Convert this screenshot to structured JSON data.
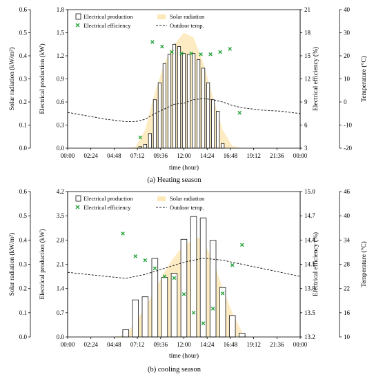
{
  "chart_data": [
    {
      "type": "bar",
      "caption": "(a) Heating season",
      "xlabel": "time (hour)",
      "x_ticks": [
        "00:00",
        "02:24",
        "04:48",
        "07:12",
        "09:36",
        "12:00",
        "14:24",
        "16:48",
        "19:12",
        "21:36",
        "00:00"
      ],
      "x_range_hours": [
        0,
        24
      ],
      "grid": false,
      "legend_position": "top-left",
      "axes": {
        "solar": {
          "label": "Solar radiation (kW/m²)",
          "range": [
            0,
            0.6
          ],
          "ticks": [
            "0.0",
            "0.1",
            "0.2",
            "0.3",
            "0.4",
            "0.5",
            "0.6"
          ]
        },
        "production": {
          "label": "Electrical production (kW)",
          "range": [
            0,
            1.8
          ],
          "ticks": [
            "0.0",
            "0.3",
            "0.6",
            "0.9",
            "1.2",
            "1.5",
            "1.8"
          ]
        },
        "efficiency": {
          "label": "Electrical efficiency (%)",
          "range": [
            3,
            21
          ],
          "ticks": [
            "3",
            "6",
            "9",
            "12",
            "15",
            "18",
            "21"
          ]
        },
        "temperature": {
          "label": "Temperature (°C)",
          "range": [
            -20,
            40
          ],
          "ticks": [
            "-20",
            "-10",
            "0",
            "10",
            "20",
            "30",
            "40"
          ]
        }
      },
      "legend": [
        "Electrical production",
        "Solar radiation",
        "Electrical efficiency",
        "Outdoor temp."
      ],
      "series": [
        {
          "name": "Electrical production",
          "axis": "production",
          "x": [
            7.5,
            8,
            8.5,
            9,
            9.5,
            10,
            10.5,
            11,
            11.5,
            12,
            12.5,
            13,
            13.5,
            14,
            14.5,
            15,
            15.5,
            16,
            16.5
          ],
          "values": [
            0.02,
            0.05,
            0.19,
            0.63,
            0.85,
            1.1,
            1.22,
            1.35,
            1.32,
            1.23,
            1.22,
            1.23,
            1.15,
            1.04,
            0.85,
            0.63,
            0.48,
            0.06,
            0.0
          ]
        },
        {
          "name": "Solar radiation",
          "axis": "solar",
          "x": [
            6,
            7,
            8,
            9,
            10,
            11,
            12,
            13,
            14,
            15,
            16,
            17,
            18
          ],
          "values": [
            0,
            0.005,
            0.08,
            0.24,
            0.37,
            0.45,
            0.5,
            0.48,
            0.37,
            0.22,
            0.08,
            0.01,
            0
          ]
        },
        {
          "name": "Electrical efficiency",
          "axis": "efficiency",
          "x": [
            7.5,
            8.75,
            9.75,
            10.75,
            11.75,
            12.75,
            13.75,
            14.75,
            15.75,
            16.75,
            17.75
          ],
          "values": [
            4.4,
            16.8,
            16.2,
            15.5,
            15.3,
            15.3,
            15.2,
            15.2,
            15.5,
            15.9,
            7.6
          ]
        },
        {
          "name": "Outdoor temp.",
          "axis": "temperature",
          "x": [
            0,
            2,
            4,
            6,
            7,
            8,
            9,
            10,
            11,
            12,
            13,
            14,
            15,
            16,
            17,
            18,
            20,
            22,
            24
          ],
          "values": [
            -4.5,
            -6,
            -7.5,
            -8.5,
            -8.5,
            -7.5,
            -5,
            -3,
            -1,
            -0.5,
            1,
            1.5,
            1,
            0,
            -1.5,
            -2.5,
            -3.5,
            -4,
            -5
          ]
        }
      ]
    },
    {
      "type": "bar",
      "caption": "(b) cooling season",
      "xlabel": "time (hour)",
      "x_ticks": [
        "00:00",
        "02:24",
        "04:48",
        "07:12",
        "09:36",
        "12:00",
        "14:24",
        "16:48",
        "19:12",
        "21:36",
        "00:00"
      ],
      "x_range_hours": [
        0,
        24
      ],
      "grid": false,
      "legend_position": "top-left",
      "axes": {
        "solar": {
          "label": "Solar radiation (kW/m²)",
          "range": [
            0,
            0.6
          ],
          "ticks": [
            "0.0",
            "0.1",
            "0.2",
            "0.3",
            "0.4",
            "0.5",
            "0.6"
          ]
        },
        "production": {
          "label": "Electrical production (kW)",
          "range": [
            0,
            4.2
          ],
          "ticks": [
            "0.0",
            "0.7",
            "1.4",
            "2.1",
            "2.8",
            "3.5",
            "4.2"
          ]
        },
        "efficiency": {
          "label": "Electrical efficiency (%)",
          "range": [
            13.2,
            15.0
          ],
          "ticks": [
            "13.2",
            "13.5",
            "13.8",
            "14.1",
            "14.4",
            "14.7",
            "15.0"
          ]
        },
        "temperature": {
          "label": "Temperature (°C)",
          "range": [
            10,
            46
          ],
          "ticks": [
            "10",
            "16",
            "22",
            "28",
            "34",
            "40",
            "46"
          ]
        }
      },
      "legend": [
        "Electrical production",
        "Solar radiation",
        "Electrical efficiency",
        "Outdoor temp."
      ],
      "series": [
        {
          "name": "Electrical production",
          "axis": "production",
          "x": [
            6,
            7,
            8,
            9,
            10,
            11,
            12,
            13,
            14,
            15,
            16,
            17,
            18
          ],
          "values": [
            0.21,
            1.07,
            1.16,
            2.27,
            1.72,
            1.84,
            2.82,
            3.48,
            3.44,
            2.79,
            1.43,
            0.62,
            0.11
          ]
        },
        {
          "name": "Solar radiation",
          "axis": "solar",
          "x": [
            4.5,
            5.5,
            6,
            7,
            8,
            9,
            10,
            11,
            12,
            13,
            13.5,
            14,
            15,
            16,
            17,
            18,
            18.5
          ],
          "values": [
            0,
            0.005,
            0.01,
            0.06,
            0.12,
            0.19,
            0.27,
            0.33,
            0.38,
            0.4,
            0.41,
            0.39,
            0.32,
            0.2,
            0.1,
            0.02,
            0
          ]
        },
        {
          "name": "Electrical efficiency",
          "axis": "efficiency",
          "x": [
            5.7,
            7,
            8,
            9,
            10,
            11,
            12,
            13,
            14,
            15,
            16,
            17,
            18
          ],
          "values": [
            14.48,
            14.2,
            14.15,
            14.05,
            13.95,
            13.93,
            13.73,
            13.5,
            13.37,
            13.55,
            13.74,
            14.09,
            14.34
          ]
        },
        {
          "name": "Outdoor temp.",
          "axis": "temperature",
          "x": [
            0,
            2,
            4,
            6,
            8,
            10,
            12,
            14,
            16,
            18,
            20,
            22,
            24
          ],
          "values": [
            26,
            25.5,
            25,
            24.5,
            25.5,
            27,
            28.5,
            29.5,
            29,
            28,
            27,
            26,
            25
          ]
        }
      ]
    }
  ]
}
